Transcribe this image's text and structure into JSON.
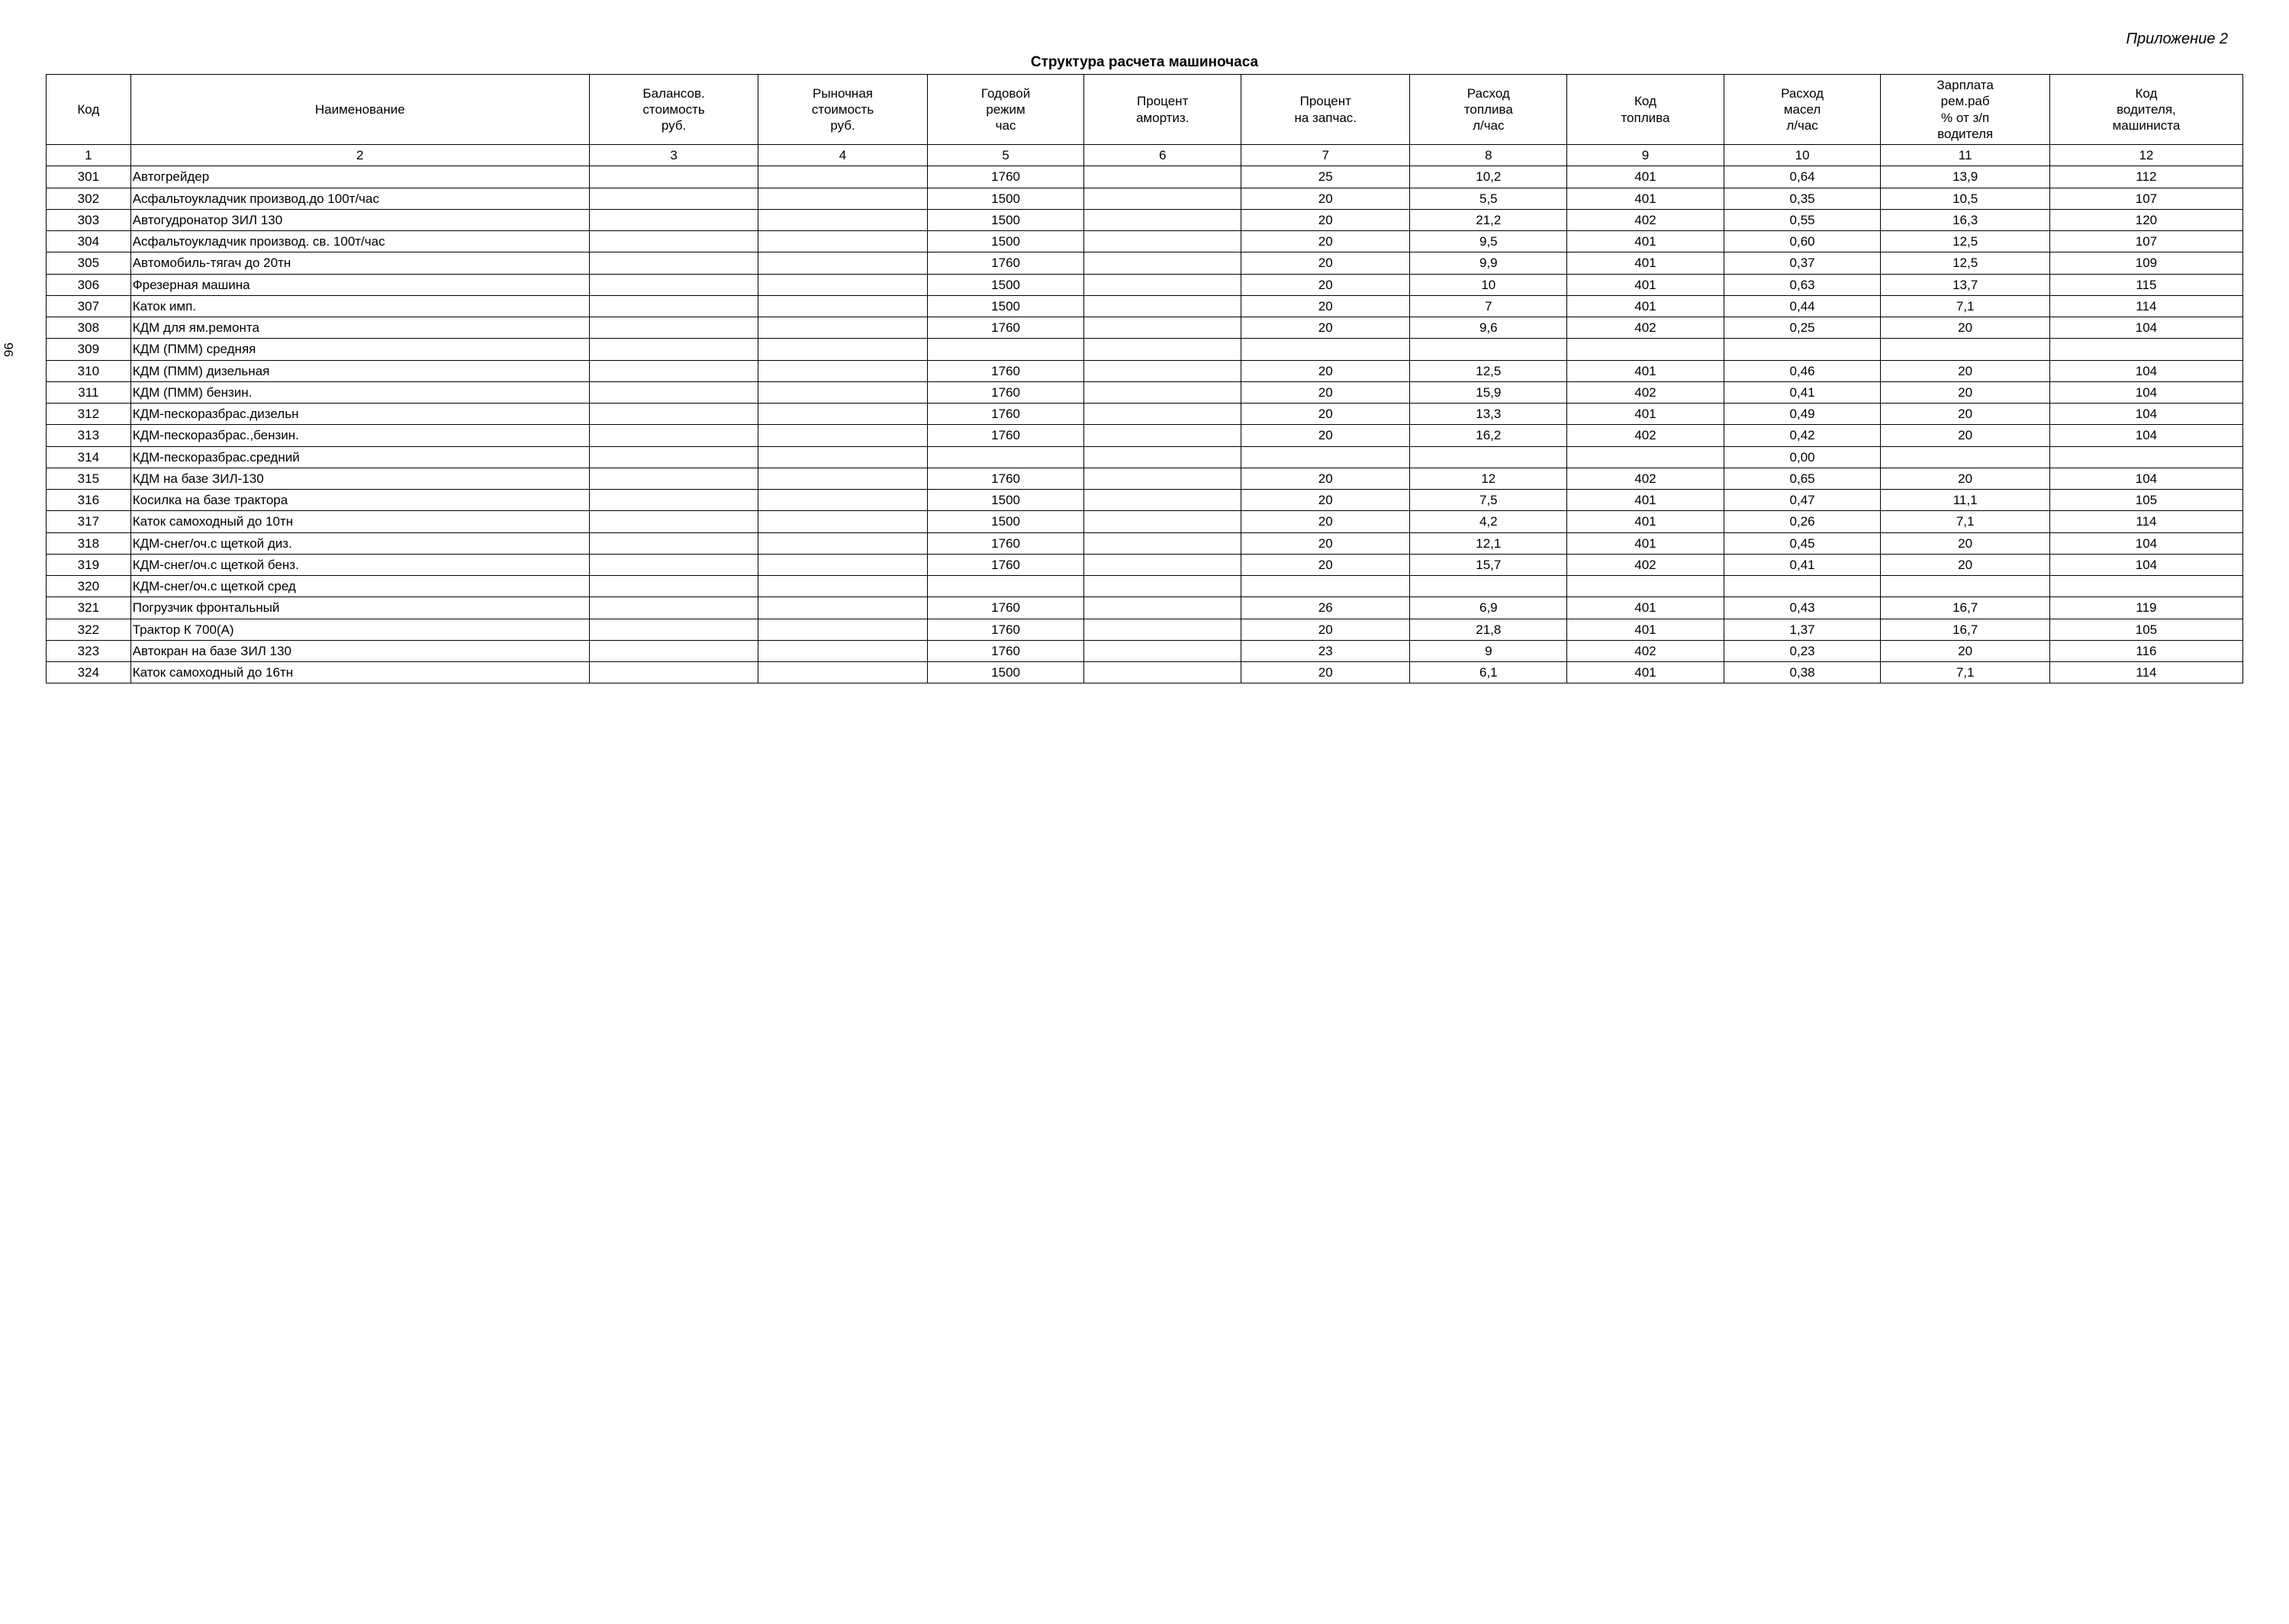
{
  "appendix": "Приложение 2",
  "title": "Структура расчета машиночаса",
  "side_page_number": "96",
  "headers": {
    "c1": "Код",
    "c2": "Наименование",
    "c3_l1": "Балансов.",
    "c3_l2": "стоимость",
    "c3_l3": "руб.",
    "c4_l1": "Рыночная",
    "c4_l2": "стоимость",
    "c4_l3": "руб.",
    "c5_l1": "Годовой",
    "c5_l2": "режим",
    "c5_l3": "час",
    "c6_l1": "Процент",
    "c6_l2": "амортиз.",
    "c7_l1": "Процент",
    "c7_l2": "на запчас.",
    "c8_l1": "Расход",
    "c8_l2": "топлива",
    "c8_l3": "л/час",
    "c9_l1": "Код",
    "c9_l2": "топлива",
    "c10_l1": "Расход",
    "c10_l2": "масел",
    "c10_l3": "л/час",
    "c11_l1": "Зарплата",
    "c11_l2": "рем.раб",
    "c11_l3": "% от з/п",
    "c11_l4": "водителя",
    "c12_l1": "Код",
    "c12_l2": "водителя,",
    "c12_l3": "машиниста"
  },
  "colnums": {
    "n1": "1",
    "n2": "2",
    "n3": "3",
    "n4": "4",
    "n5": "5",
    "n6": "6",
    "n7": "7",
    "n8": "8",
    "n9": "9",
    "n10": "10",
    "n11": "11",
    "n12": "12"
  },
  "colwidths": {
    "c1": "3.5%",
    "c2": "19%",
    "c3": "7%",
    "c4": "7%",
    "c5": "6.5%",
    "c6": "6.5%",
    "c7": "7%",
    "c8": "6.5%",
    "c9": "6.5%",
    "c10": "6.5%",
    "c11": "7%",
    "c12": "8%"
  },
  "rows": [
    {
      "code": "301",
      "name": "Автогрейдер",
      "c3": "",
      "c4": "",
      "c5": "1760",
      "c6": "",
      "c7": "25",
      "c8": "10,2",
      "c9": "401",
      "c10": "0,64",
      "c11": "13,9",
      "c12": "112"
    },
    {
      "code": "302",
      "name": "Асфальтоукладчик производ.до 100т/час",
      "c3": "",
      "c4": "",
      "c5": "1500",
      "c6": "",
      "c7": "20",
      "c8": "5,5",
      "c9": "401",
      "c10": "0,35",
      "c11": "10,5",
      "c12": "107"
    },
    {
      "code": "303",
      "name": "Автогудронатор  ЗИЛ 130",
      "c3": "",
      "c4": "",
      "c5": "1500",
      "c6": "",
      "c7": "20",
      "c8": "21,2",
      "c9": "402",
      "c10": "0,55",
      "c11": "16,3",
      "c12": "120"
    },
    {
      "code": "304",
      "name": "Асфальтоукладчик производ. св. 100т/час",
      "c3": "",
      "c4": "",
      "c5": "1500",
      "c6": "",
      "c7": "20",
      "c8": "9,5",
      "c9": "401",
      "c10": "0,60",
      "c11": "12,5",
      "c12": "107"
    },
    {
      "code": "305",
      "name": "Автомобиль-тягач до 20тн",
      "c3": "",
      "c4": "",
      "c5": "1760",
      "c6": "",
      "c7": "20",
      "c8": "9,9",
      "c9": "401",
      "c10": "0,37",
      "c11": "12,5",
      "c12": "109"
    },
    {
      "code": "306",
      "name": "Фрезерная машина",
      "c3": "",
      "c4": "",
      "c5": "1500",
      "c6": "",
      "c7": "20",
      "c8": "10",
      "c9": "401",
      "c10": "0,63",
      "c11": "13,7",
      "c12": "115"
    },
    {
      "code": "307",
      "name": "Каток имп.",
      "c3": "",
      "c4": "",
      "c5": "1500",
      "c6": "",
      "c7": "20",
      "c8": "7",
      "c9": "401",
      "c10": "0,44",
      "c11": "7,1",
      "c12": "114"
    },
    {
      "code": "308",
      "name": "КДМ для ям.ремонта",
      "c3": "",
      "c4": "",
      "c5": "1760",
      "c6": "",
      "c7": "20",
      "c8": "9,6",
      "c9": "402",
      "c10": "0,25",
      "c11": "20",
      "c12": "104"
    },
    {
      "code": "309",
      "name": "КДМ (ПММ) средняя",
      "c3": "",
      "c4": "",
      "c5": "",
      "c6": "",
      "c7": "",
      "c8": "",
      "c9": "",
      "c10": "",
      "c11": "",
      "c12": ""
    },
    {
      "code": "310",
      "name": "КДМ (ПММ) дизельная",
      "c3": "",
      "c4": "",
      "c5": "1760",
      "c6": "",
      "c7": "20",
      "c8": "12,5",
      "c9": "401",
      "c10": "0,46",
      "c11": "20",
      "c12": "104"
    },
    {
      "code": "311",
      "name": "КДМ (ПММ) бензин.",
      "c3": "",
      "c4": "",
      "c5": "1760",
      "c6": "",
      "c7": "20",
      "c8": "15,9",
      "c9": "402",
      "c10": "0,41",
      "c11": "20",
      "c12": "104"
    },
    {
      "code": "312",
      "name": "КДМ-пескоразбрас.дизельн",
      "c3": "",
      "c4": "",
      "c5": "1760",
      "c6": "",
      "c7": "20",
      "c8": "13,3",
      "c9": "401",
      "c10": "0,49",
      "c11": "20",
      "c12": "104"
    },
    {
      "code": "313",
      "name": "КДМ-пескоразбрас.,бензин.",
      "c3": "",
      "c4": "",
      "c5": "1760",
      "c6": "",
      "c7": "20",
      "c8": "16,2",
      "c9": "402",
      "c10": "0,42",
      "c11": "20",
      "c12": "104"
    },
    {
      "code": "314",
      "name": "КДМ-пескоразбрас.средний",
      "c3": "",
      "c4": "",
      "c5": "",
      "c6": "",
      "c7": "",
      "c8": "",
      "c9": "",
      "c10": "0,00",
      "c11": "",
      "c12": ""
    },
    {
      "code": "315",
      "name": "КДМ на базе ЗИЛ-130",
      "c3": "",
      "c4": "",
      "c5": "1760",
      "c6": "",
      "c7": "20",
      "c8": "12",
      "c9": "402",
      "c10": "0,65",
      "c11": "20",
      "c12": "104"
    },
    {
      "code": "316",
      "name": "Косилка на базе трактора",
      "c3": "",
      "c4": "",
      "c5": "1500",
      "c6": "",
      "c7": "20",
      "c8": "7,5",
      "c9": "401",
      "c10": "0,47",
      "c11": "11,1",
      "c12": "105"
    },
    {
      "code": "317",
      "name": "Каток самоходный до 10тн",
      "c3": "",
      "c4": "",
      "c5": "1500",
      "c6": "",
      "c7": "20",
      "c8": "4,2",
      "c9": "401",
      "c10": "0,26",
      "c11": "7,1",
      "c12": "114"
    },
    {
      "code": "318",
      "name": "КДМ-снег/оч.с щеткой диз.",
      "c3": "",
      "c4": "",
      "c5": "1760",
      "c6": "",
      "c7": "20",
      "c8": "12,1",
      "c9": "401",
      "c10": "0,45",
      "c11": "20",
      "c12": "104"
    },
    {
      "code": "319",
      "name": "КДМ-снег/оч.с щеткой бенз.",
      "c3": "",
      "c4": "",
      "c5": "1760",
      "c6": "",
      "c7": "20",
      "c8": "15,7",
      "c9": "402",
      "c10": "0,41",
      "c11": "20",
      "c12": "104"
    },
    {
      "code": "320",
      "name": "КДМ-снег/оч.с щеткой сред",
      "c3": "",
      "c4": "",
      "c5": "",
      "c6": "",
      "c7": "",
      "c8": "",
      "c9": "",
      "c10": "",
      "c11": "",
      "c12": ""
    },
    {
      "code": "321",
      "name": "Погрузчик фронтальный",
      "c3": "",
      "c4": "",
      "c5": "1760",
      "c6": "",
      "c7": "26",
      "c8": "6,9",
      "c9": "401",
      "c10": "0,43",
      "c11": "16,7",
      "c12": "119"
    },
    {
      "code": "322",
      "name": "Трактор К 700(А)",
      "c3": "",
      "c4": "",
      "c5": "1760",
      "c6": "",
      "c7": "20",
      "c8": "21,8",
      "c9": "401",
      "c10": "1,37",
      "c11": "16,7",
      "c12": "105"
    },
    {
      "code": "323",
      "name": "Автокран на базе ЗИЛ 130",
      "c3": "",
      "c4": "",
      "c5": "1760",
      "c6": "",
      "c7": "23",
      "c8": "9",
      "c9": "402",
      "c10": "0,23",
      "c11": "20",
      "c12": "116"
    },
    {
      "code": "324",
      "name": "Каток самоходный  до 16тн",
      "c3": "",
      "c4": "",
      "c5": "1500",
      "c6": "",
      "c7": "20",
      "c8": "6,1",
      "c9": "401",
      "c10": "0,38",
      "c11": "7,1",
      "c12": "114"
    }
  ]
}
